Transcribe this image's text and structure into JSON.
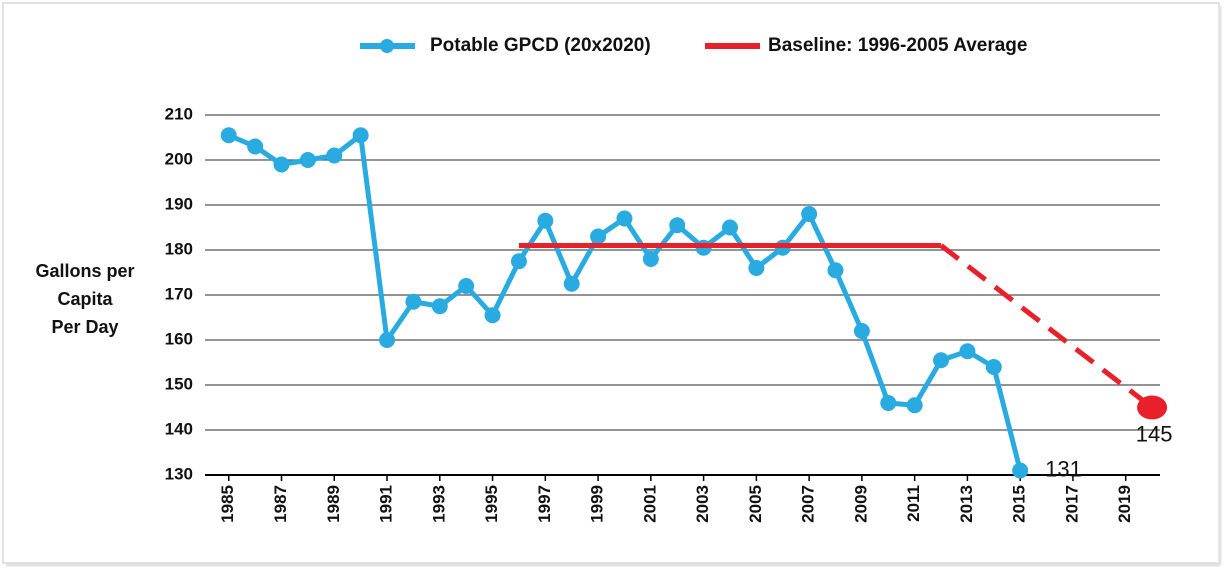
{
  "chart_data": {
    "type": "line",
    "ylabel": [
      "Gallons per",
      "Capita",
      "Per Day"
    ],
    "xlim": [
      1984.1,
      2020.3
    ],
    "xticks": [
      1985,
      1987,
      1989,
      1991,
      1993,
      1995,
      1997,
      1999,
      2001,
      2003,
      2005,
      2007,
      2009,
      2011,
      2013,
      2015,
      2017,
      2019
    ],
    "ylim": [
      130,
      210
    ],
    "yticks": [
      130,
      140,
      150,
      160,
      170,
      180,
      190,
      200,
      210
    ],
    "grid": true,
    "legend": "top",
    "series": [
      {
        "name": "Potable GPCD (20x2020)",
        "color": "#29abe2",
        "markers": true,
        "x": [
          1985,
          1986,
          1987,
          1988,
          1989,
          1990,
          1991,
          1992,
          1993,
          1994,
          1995,
          1996,
          1997,
          1998,
          1999,
          2000,
          2001,
          2002,
          2003,
          2004,
          2005,
          2006,
          2007,
          2008,
          2009,
          2010,
          2011,
          2012,
          2013,
          2014,
          2015
        ],
        "values": [
          205.5,
          203,
          199,
          200,
          201,
          205.5,
          160,
          168.5,
          167.5,
          172,
          165.5,
          177.5,
          186.5,
          172.5,
          183,
          187,
          178,
          185.5,
          180.5,
          185,
          176,
          180.5,
          188,
          175.5,
          162,
          146,
          145.5,
          155.5,
          157.5,
          154,
          131
        ]
      },
      {
        "name": "Baseline:  1996-2005 Average",
        "color": "#e8202a",
        "markers": false,
        "dashed_after": 2012,
        "end_marker": true,
        "x": [
          1996,
          2012,
          2020
        ],
        "values": [
          181,
          181,
          145
        ]
      }
    ]
  }
}
